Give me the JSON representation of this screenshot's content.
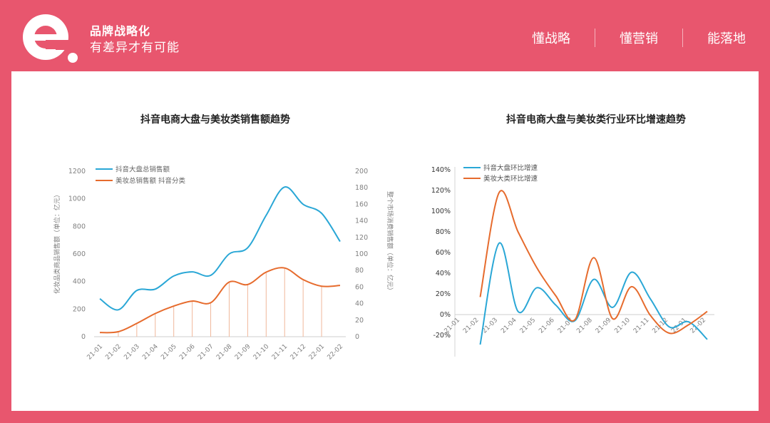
{
  "header": {
    "brand_title": "品牌战略化",
    "brand_subtitle": "有差异才有可能",
    "nav": [
      "懂战略",
      "懂营销",
      "能落地"
    ]
  },
  "colors": {
    "brand": "#e8566e",
    "blue": "#2aa7d6",
    "orange": "#e66b2d",
    "grid": "#d9d9d9",
    "text": "#808080"
  },
  "chart_data": [
    {
      "type": "line",
      "title": "抖音电商大盘与美妆类销售额趋势",
      "categories": [
        "21-01",
        "21-02",
        "21-03",
        "21-04",
        "21-05",
        "21-06",
        "21-07",
        "21-08",
        "21-09",
        "21-10",
        "21-11",
        "21-12",
        "22-01",
        "22-02"
      ],
      "ylabel": "化妆品类商品销售额（单位：亿元）",
      "y2label": "整个市场消费销售额（单位：亿元）",
      "ylim": [
        0,
        1200
      ],
      "y2lim": [
        0,
        200
      ],
      "yticks": [
        "0",
        "200",
        "400",
        "600",
        "800",
        "1000",
        "1200"
      ],
      "y2ticks": [
        "0",
        "20",
        "40",
        "60",
        "80",
        "100",
        "120",
        "140",
        "160",
        "180",
        "200"
      ],
      "legend_position": "top-left",
      "series": [
        {
          "name": "抖音大盘总销售额",
          "axis": "left",
          "color": "#2aa7d6",
          "values": [
            275,
            195,
            335,
            345,
            440,
            470,
            445,
            600,
            645,
            880,
            1085,
            960,
            895,
            690
          ]
        },
        {
          "name": "美妆总销售额 抖音分类",
          "axis": "right",
          "color": "#e66b2d",
          "values": [
            5,
            6,
            16,
            28,
            37,
            43,
            41,
            66,
            63,
            78,
            83,
            69,
            61,
            62
          ]
        }
      ]
    },
    {
      "type": "line",
      "title": "抖音电商大盘与美妆类行业环比增速趋势",
      "categories": [
        "21-01",
        "21-02",
        "21-03",
        "21-04",
        "21-05",
        "21-06",
        "21-07",
        "21-08",
        "21-09",
        "21-10",
        "21-11",
        "21-12",
        "22-01",
        "22-02"
      ],
      "ylim": [
        -20,
        140
      ],
      "yticks": [
        "-20%",
        "0%",
        "20%",
        "40%",
        "60%",
        "80%",
        "100%",
        "120%",
        "140%"
      ],
      "legend_position": "top-left",
      "series": [
        {
          "name": "抖音大盘环比增速",
          "color": "#2aa7d6",
          "values": [
            null,
            -29,
            69,
            3,
            26,
            9,
            -6,
            34,
            7,
            41,
            15,
            -12,
            -7,
            -24
          ]
        },
        {
          "name": "美妆大类环比增速",
          "color": "#e66b2d",
          "values": [
            null,
            17,
            118,
            80,
            45,
            18,
            -5,
            55,
            -4,
            27,
            -1,
            -18,
            -10,
            3
          ]
        }
      ]
    }
  ]
}
